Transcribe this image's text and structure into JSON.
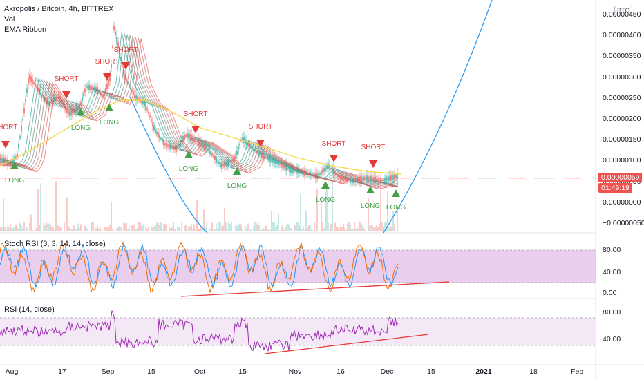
{
  "legend": {
    "symbol": "Akropolis / Bitcoin, 4h, BITTREX",
    "vol": "Vol",
    "ribbon": "EMA Ribbon"
  },
  "currency_badge": "BTC",
  "price_axis": {
    "ticks": [
      "0.00000450",
      "0.00000400",
      "0.00000350",
      "0.00000300",
      "0.00000250",
      "0.00000200",
      "0.00000150",
      "0.00000100",
      "0.00000050",
      "0.00000000",
      "−0.00000050"
    ],
    "last_price": "0.00000059",
    "countdown": "01:49:19"
  },
  "stoch_rsi": {
    "label": "Stoch RSI (3, 3, 14, 14, close)",
    "ticks": [
      "80.00",
      "40.00",
      "0.00"
    ]
  },
  "rsi": {
    "label": "RSI (14, close)",
    "ticks": [
      "80.00",
      "40.00"
    ]
  },
  "time_axis": {
    "ticks": [
      {
        "label": "Aug"
      },
      {
        "label": "17"
      },
      {
        "label": "Sep"
      },
      {
        "label": "15"
      },
      {
        "label": "Oct"
      },
      {
        "label": "15"
      },
      {
        "label": "Nov"
      },
      {
        "label": "16"
      },
      {
        "label": "Dec"
      },
      {
        "label": "15"
      },
      {
        "label": "2021",
        "bold": true
      },
      {
        "label": "18"
      },
      {
        "label": "Feb"
      }
    ]
  },
  "signals": {
    "short_label": "SHORT",
    "long_label": "LONG"
  },
  "colors": {
    "up": "#26a69a",
    "down": "#ef5350",
    "ema_yellow": "#f5d94a",
    "parabola": "#2196f3",
    "stoch_band": "#e1bee7",
    "rsi_line": "#9c27b0",
    "trendline": "#e53935",
    "signal_long": "#43a047",
    "signal_short": "#e53935"
  }
}
